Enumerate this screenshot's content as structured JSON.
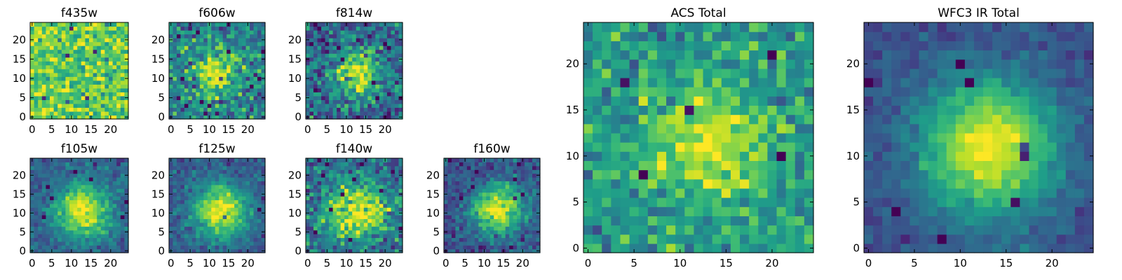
{
  "chart_data": [
    {
      "type": "heatmap",
      "title": "f435w",
      "grid": "false",
      "colormap": "viridis",
      "x_ticks": [
        0,
        5,
        10,
        15,
        20
      ],
      "y_ticks": [
        0,
        5,
        10,
        15,
        20
      ],
      "xlim": [
        -0.5,
        24.5
      ],
      "ylim": [
        -0.5,
        24.5
      ],
      "pixels": [
        25,
        25
      ],
      "center": [
        12,
        12
      ],
      "peak": 0.72,
      "sigma": 5,
      "background": 0.8,
      "noise": 0.14,
      "seed": 11
    },
    {
      "type": "heatmap",
      "title": "f606w",
      "grid": "false",
      "colormap": "viridis",
      "x_ticks": [
        0,
        5,
        10,
        15,
        20
      ],
      "y_ticks": [
        0,
        5,
        10,
        15,
        20
      ],
      "xlim": [
        -0.5,
        24.5
      ],
      "ylim": [
        -0.5,
        24.5
      ],
      "pixels": [
        25,
        25
      ],
      "center": [
        12,
        11.5
      ],
      "peak": 0.92,
      "sigma": 4.2,
      "background": 0.42,
      "noise": 0.16,
      "seed": 23
    },
    {
      "type": "heatmap",
      "title": "f814w",
      "grid": "false",
      "colormap": "viridis",
      "x_ticks": [
        0,
        5,
        10,
        15,
        20
      ],
      "y_ticks": [
        0,
        5,
        10,
        15,
        20
      ],
      "xlim": [
        -0.5,
        24.5
      ],
      "ylim": [
        -0.5,
        24.5
      ],
      "pixels": [
        25,
        25
      ],
      "center": [
        13,
        11.5
      ],
      "peak": 0.95,
      "sigma": 4,
      "background": 0.35,
      "noise": 0.16,
      "seed": 37
    },
    {
      "type": "heatmap",
      "title": "f105w",
      "grid": "false",
      "colormap": "viridis",
      "x_ticks": [
        0,
        5,
        10,
        15,
        20
      ],
      "y_ticks": [
        0,
        5,
        10,
        15,
        20
      ],
      "xlim": [
        -0.5,
        24.5
      ],
      "ylim": [
        -0.5,
        24.5
      ],
      "pixels": [
        25,
        25
      ],
      "center": [
        13,
        10.5
      ],
      "peak": 0.97,
      "sigma": 5,
      "background": 0.3,
      "noise": 0.08,
      "seed": 41
    },
    {
      "type": "heatmap",
      "title": "f125w",
      "grid": "false",
      "colormap": "viridis",
      "x_ticks": [
        0,
        5,
        10,
        15,
        20
      ],
      "y_ticks": [
        0,
        5,
        10,
        15,
        20
      ],
      "xlim": [
        -0.5,
        24.5
      ],
      "ylim": [
        -0.5,
        24.5
      ],
      "pixels": [
        25,
        25
      ],
      "center": [
        13,
        10.5
      ],
      "peak": 0.97,
      "sigma": 5,
      "background": 0.28,
      "noise": 0.08,
      "seed": 53
    },
    {
      "type": "heatmap",
      "title": "f140w",
      "grid": "false",
      "colormap": "viridis",
      "x_ticks": [
        0,
        5,
        10,
        15,
        20
      ],
      "y_ticks": [
        0,
        5,
        10,
        15,
        20
      ],
      "xlim": [
        -0.5,
        24.5
      ],
      "ylim": [
        -0.5,
        24.5
      ],
      "pixels": [
        25,
        25
      ],
      "center": [
        13,
        10.5
      ],
      "peak": 0.95,
      "sigma": 5.5,
      "background": 0.34,
      "noise": 0.14,
      "seed": 67
    },
    {
      "type": "heatmap",
      "title": "f160w",
      "grid": "false",
      "colormap": "viridis",
      "x_ticks": [
        0,
        5,
        10,
        15,
        20
      ],
      "y_ticks": [
        0,
        5,
        10,
        15,
        20
      ],
      "xlim": [
        -0.5,
        24.5
      ],
      "ylim": [
        -0.5,
        24.5
      ],
      "pixels": [
        25,
        25
      ],
      "center": [
        13.5,
        11
      ],
      "peak": 0.98,
      "sigma": 4.6,
      "background": 0.25,
      "noise": 0.1,
      "seed": 79
    },
    {
      "type": "heatmap",
      "title": "ACS Total",
      "grid": "false",
      "colormap": "viridis",
      "x_ticks": [
        0,
        5,
        10,
        15,
        20
      ],
      "y_ticks": [
        0,
        5,
        10,
        15,
        20
      ],
      "xlim": [
        -0.5,
        24.5
      ],
      "ylim": [
        -0.5,
        24.5
      ],
      "pixels": [
        25,
        25
      ],
      "center": [
        13,
        11.5
      ],
      "peak": 0.95,
      "sigma": 4.6,
      "background": 0.52,
      "noise": 0.12,
      "seed": 97
    },
    {
      "type": "heatmap",
      "title": "WFC3 IR Total",
      "grid": "false",
      "colormap": "viridis",
      "x_ticks": [
        0,
        5,
        10,
        15,
        20
      ],
      "y_ticks": [
        0,
        5,
        10,
        15,
        20
      ],
      "xlim": [
        -0.5,
        24.5
      ],
      "ylim": [
        -0.5,
        24.5
      ],
      "pixels": [
        25,
        25
      ],
      "center": [
        13,
        11
      ],
      "peak": 0.98,
      "sigma": 5.2,
      "background": 0.24,
      "noise": 0.05,
      "seed": 101
    }
  ],
  "colors": {
    "colormap_stops": [
      "#440154",
      "#482878",
      "#3e4989",
      "#31688e",
      "#26828e",
      "#1f9e89",
      "#35b779",
      "#6ece58",
      "#b5de2b",
      "#fde725"
    ],
    "axes": "#000000",
    "background": "#ffffff"
  }
}
